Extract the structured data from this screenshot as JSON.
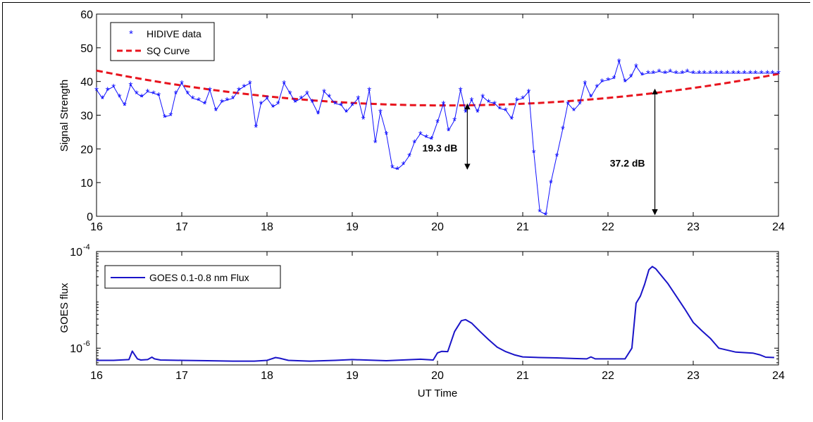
{
  "chart_data": [
    {
      "type": "line",
      "ylabel": "Signal Strength",
      "xlim": [
        16,
        24
      ],
      "ylim": [
        0,
        60
      ],
      "xticks": [
        "16",
        "17",
        "18",
        "19",
        "20",
        "21",
        "22",
        "23",
        "24"
      ],
      "yticks": [
        "0",
        "10",
        "20",
        "30",
        "40",
        "50",
        "60"
      ],
      "legend_position": "top-left",
      "grid": false,
      "series": [
        {
          "name": "HIDIVE data",
          "style": "markers-with-line",
          "marker": "*",
          "color": "#1010ff",
          "x": [
            16.0,
            16.07,
            16.13,
            16.2,
            16.27,
            16.33,
            16.4,
            16.47,
            16.53,
            16.6,
            16.67,
            16.73,
            16.8,
            16.87,
            16.93,
            17.0,
            17.07,
            17.13,
            17.2,
            17.27,
            17.33,
            17.4,
            17.47,
            17.53,
            17.6,
            17.67,
            17.73,
            17.8,
            17.87,
            17.93,
            18.0,
            18.07,
            18.13,
            18.2,
            18.27,
            18.33,
            18.4,
            18.47,
            18.53,
            18.6,
            18.67,
            18.73,
            18.8,
            18.87,
            18.93,
            19.0,
            19.07,
            19.13,
            19.2,
            19.27,
            19.33,
            19.4,
            19.47,
            19.53,
            19.6,
            19.67,
            19.73,
            19.8,
            19.87,
            19.93,
            20.0,
            20.07,
            20.13,
            20.2,
            20.27,
            20.33,
            20.4,
            20.47,
            20.53,
            20.6,
            20.67,
            20.73,
            20.8,
            20.87,
            20.93,
            21.0,
            21.07,
            21.13,
            21.2,
            21.27,
            21.33,
            21.4,
            21.47,
            21.53,
            21.6,
            21.67,
            21.73,
            21.8,
            21.87,
            21.93,
            22.0,
            22.07,
            22.13,
            22.2,
            22.27,
            22.33,
            22.4,
            22.47,
            22.53,
            22.6,
            22.67,
            22.73,
            22.8,
            22.87,
            22.93,
            23.0,
            23.07,
            23.13,
            23.2,
            23.27,
            23.33,
            23.4,
            23.47,
            23.53,
            23.6,
            23.67,
            23.73,
            23.8,
            23.87,
            23.93,
            24.0
          ],
          "y": [
            37.5,
            35.0,
            37.5,
            38.5,
            35.5,
            33.0,
            39.0,
            36.5,
            35.5,
            37.0,
            36.5,
            36.0,
            29.5,
            30.0,
            36.5,
            39.5,
            36.5,
            35.0,
            34.5,
            33.5,
            37.5,
            31.5,
            34.0,
            34.5,
            35.0,
            37.5,
            38.5,
            39.5,
            26.5,
            33.5,
            35.0,
            32.5,
            33.5,
            39.5,
            36.5,
            34.0,
            35.0,
            36.5,
            34.0,
            30.5,
            37.0,
            35.5,
            33.5,
            33.0,
            31.0,
            33.0,
            35.0,
            29.0,
            37.5,
            22.0,
            31.0,
            24.5,
            14.5,
            14.0,
            15.5,
            18.0,
            22.0,
            24.5,
            23.5,
            23.0,
            28.0,
            33.5,
            25.5,
            28.5,
            37.5,
            31.0,
            34.5,
            31.0,
            35.5,
            34.0,
            33.5,
            32.0,
            31.5,
            29.0,
            34.5,
            35.0,
            37.0,
            19.0,
            1.5,
            0.5,
            10.0,
            18.0,
            26.0,
            33.5,
            31.5,
            33.5,
            39.5,
            35.5,
            38.5,
            40.0,
            40.5,
            41.0,
            46.0,
            40.0,
            41.5,
            44.5,
            42.0,
            42.5,
            42.5,
            43.0,
            42.5,
            43.0,
            42.5,
            42.5,
            43.0,
            42.5,
            42.5,
            42.5,
            42.5,
            42.5,
            42.5,
            42.5,
            42.5,
            42.5,
            42.5,
            42.5,
            42.5,
            42.5,
            42.5,
            42.5,
            42.5
          ]
        },
        {
          "name": "SQ Curve",
          "style": "dashed-line",
          "color": "#e8141e",
          "quadratic": {
            "vertex_x": 20.1,
            "vertex_y": 32.9,
            "a": 0.615
          },
          "x_range": [
            16,
            24
          ]
        }
      ],
      "annotations": [
        {
          "text": "19.3 dB",
          "x": 20.35,
          "y_from": 14.0,
          "y_to": 33.3
        },
        {
          "text": "37.2 dB",
          "x": 22.55,
          "y_from": 0.5,
          "y_to": 37.7
        }
      ]
    },
    {
      "type": "line",
      "xlabel": "UT Time",
      "ylabel": "GOES flux",
      "yscale": "log",
      "xlim": [
        16,
        24
      ],
      "ylim": [
        4.5e-07,
        0.0001
      ],
      "xticks": [
        "16",
        "17",
        "18",
        "19",
        "20",
        "21",
        "22",
        "23",
        "24"
      ],
      "ytick_bases": [
        "10",
        "10"
      ],
      "ytick_exponents": [
        "-6",
        "-4"
      ],
      "legend_position": "top-left",
      "grid": false,
      "series": [
        {
          "name": "GOES 0.1-0.8 nm Flux",
          "color": "#1a14c8",
          "x": [
            16.0,
            16.2,
            16.38,
            16.42,
            16.45,
            16.48,
            16.52,
            16.6,
            16.65,
            16.68,
            16.75,
            17.0,
            17.3,
            17.6,
            17.85,
            18.0,
            18.1,
            18.15,
            18.25,
            18.5,
            18.8,
            19.0,
            19.4,
            19.8,
            19.95,
            20.0,
            20.05,
            20.12,
            20.2,
            20.28,
            20.33,
            20.4,
            20.5,
            20.6,
            20.7,
            20.8,
            20.9,
            21.0,
            21.2,
            21.4,
            21.6,
            21.75,
            21.8,
            21.85,
            21.9,
            22.0,
            22.2,
            22.28,
            22.33,
            22.38,
            22.43,
            22.48,
            22.52,
            22.56,
            22.6,
            22.7,
            22.8,
            22.9,
            23.0,
            23.1,
            23.2,
            23.3,
            23.5,
            23.7,
            23.78,
            23.85,
            23.95
          ],
          "y": [
            5.6e-07,
            5.6e-07,
            5.8e-07,
            8.7e-07,
            7.2e-07,
            6e-07,
            5.7e-07,
            5.8e-07,
            6.5e-07,
            6e-07,
            5.7e-07,
            5.6e-07,
            5.5e-07,
            5.4e-07,
            5.4e-07,
            5.6e-07,
            6.4e-07,
            6.2e-07,
            5.6e-07,
            5.4e-07,
            5.6e-07,
            5.8e-07,
            5.5e-07,
            5.9e-07,
            5.7e-07,
            8e-07,
            8.6e-07,
            8.5e-07,
            2.2e-06,
            3.7e-06,
            3.9e-06,
            3.3e-06,
            2.2e-06,
            1.5e-06,
            1.05e-06,
            8.5e-07,
            7.3e-07,
            6.6e-07,
            6.4e-07,
            6.3e-07,
            6.1e-07,
            6e-07,
            6.6e-07,
            6e-07,
            6e-07,
            6e-07,
            6e-07,
            1e-06,
            8.5e-06,
            1.2e-05,
            2.1e-05,
            4.2e-05,
            4.9e-05,
            4.4e-05,
            3.6e-05,
            2.2e-05,
            1.2e-05,
            6.5e-06,
            3.4e-06,
            2.3e-06,
            1.6e-06,
            1e-06,
            8.3e-07,
            7.9e-07,
            7.3e-07,
            6.5e-07,
            6.4e-07
          ]
        }
      ]
    }
  ]
}
